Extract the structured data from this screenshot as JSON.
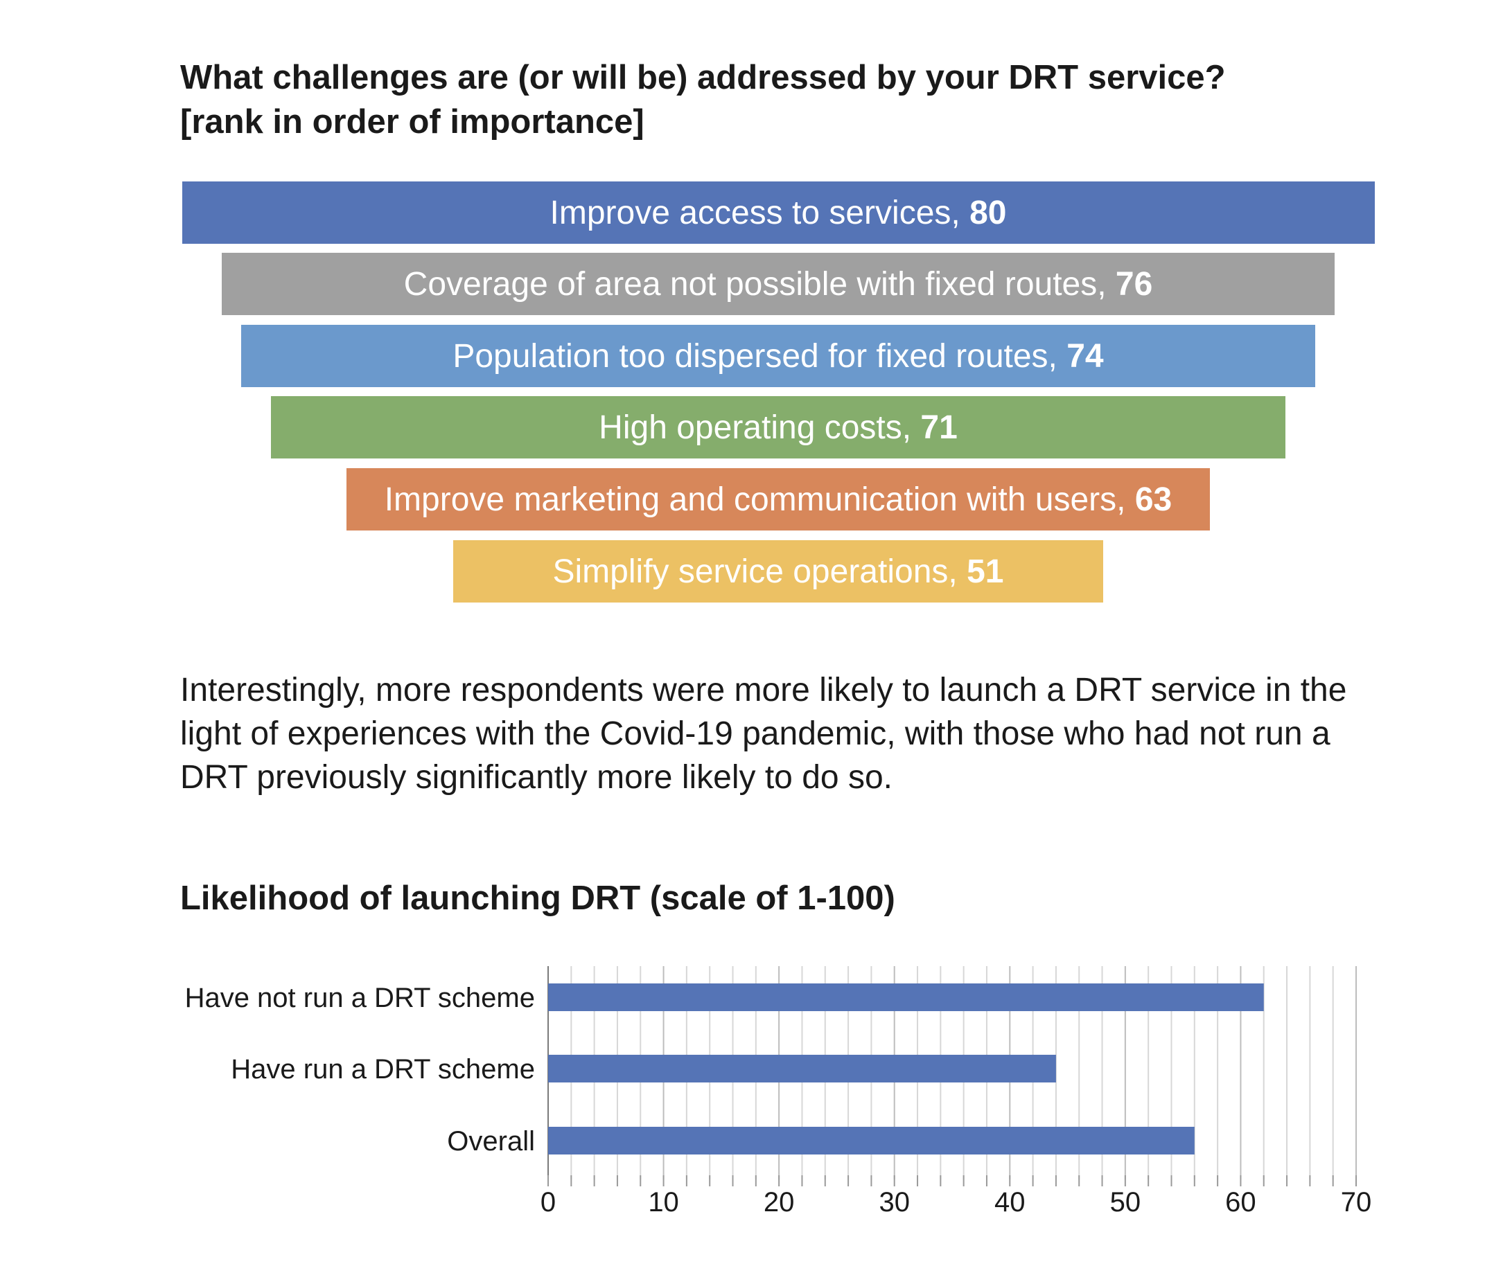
{
  "funnel": {
    "title_line1": "What challenges are (or will be) addressed by your DRT service?",
    "title_line2": "[rank in order of importance]",
    "items": [
      {
        "label": "Improve access to services,",
        "value": "80",
        "color": "#5574b6"
      },
      {
        "label": "Coverage of area not possible with fixed routes,",
        "value": "76",
        "color": "#a0a0a0"
      },
      {
        "label": "Population too dispersed for fixed routes,",
        "value": "74",
        "color": "#6b99cc"
      },
      {
        "label": "High operating costs,",
        "value": "71",
        "color": "#85ad6c"
      },
      {
        "label": "Improve marketing and communication with users,",
        "value": "63",
        "color": "#d7875a"
      },
      {
        "label": "Simplify service operations,",
        "value": "51",
        "color": "#ecc164"
      }
    ]
  },
  "paragraph": "Interestingly, more respondents were more likely to launch a DRT service in the light of experiences with the Covid-19 pandemic, with those who had not run a DRT previously significantly more likely to do so.",
  "chart_data": {
    "type": "bar",
    "orientation": "horizontal",
    "title": "Likelihood of launching DRT (scale of 1-100)",
    "categories": [
      "Have not run a DRT scheme",
      "Have run a DRT scheme",
      "Overall"
    ],
    "values": [
      62,
      44,
      56
    ],
    "xlim": [
      0,
      70
    ],
    "xticks": [
      "0",
      "10",
      "20",
      "30",
      "40",
      "50",
      "60",
      "70"
    ],
    "grid": true,
    "bar_color": "#5574b6"
  }
}
